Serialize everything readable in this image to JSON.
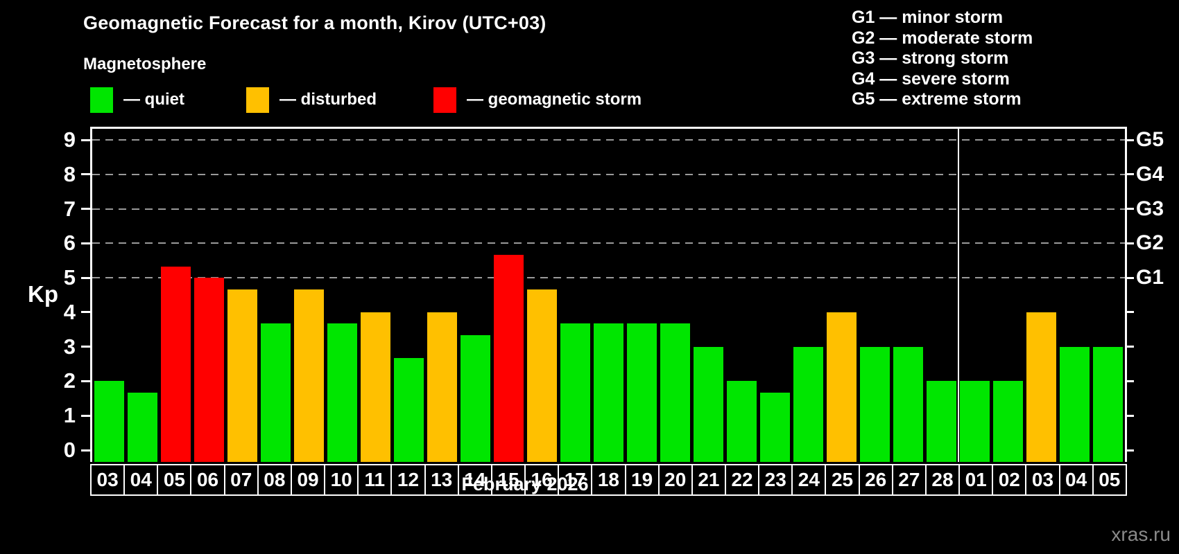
{
  "header": {
    "title": "Geomagnetic Forecast for a month, Kirov (UTC+03)",
    "subtitle": "Magnetosphere"
  },
  "legend": {
    "items": [
      {
        "label": "— quiet",
        "color": "#00E600"
      },
      {
        "label": "— disturbed",
        "color": "#FFC000"
      },
      {
        "label": "— geomagnetic storm",
        "color": "#FF0000"
      }
    ]
  },
  "storm_scale_legend": {
    "lines": [
      "G1 — minor storm",
      "G2 — moderate storm",
      "G3 — strong storm",
      "G4 — severe storm",
      "G5 — extreme storm"
    ]
  },
  "watermark": "xras.ru",
  "chart_data": {
    "type": "bar",
    "title": "Geomagnetic Forecast for a month, Kirov (UTC+03)",
    "ylabel": "Kp",
    "xlabel": "February 2026",
    "ylim": [
      0,
      9
    ],
    "yticks": [
      0,
      1,
      2,
      3,
      4,
      5,
      6,
      7,
      8,
      9
    ],
    "gridlines_at": [
      5,
      6,
      7,
      8,
      9
    ],
    "grid": "dashed-horizontal",
    "legend_position": "top-left",
    "right_axis": [
      {
        "kp": 5,
        "label": "G1"
      },
      {
        "kp": 6,
        "label": "G2"
      },
      {
        "kp": 7,
        "label": "G3"
      },
      {
        "kp": 8,
        "label": "G4"
      },
      {
        "kp": 9,
        "label": "G5"
      }
    ],
    "categories": [
      "03",
      "04",
      "05",
      "06",
      "07",
      "08",
      "09",
      "10",
      "11",
      "12",
      "13",
      "14",
      "15",
      "16",
      "17",
      "18",
      "19",
      "20",
      "21",
      "22",
      "23",
      "24",
      "25",
      "26",
      "27",
      "28",
      "01",
      "02",
      "03",
      "04",
      "05"
    ],
    "values": [
      2.0,
      1.67,
      5.33,
      5.0,
      4.67,
      3.67,
      4.67,
      3.67,
      4.0,
      2.67,
      4.0,
      3.33,
      5.67,
      4.67,
      3.67,
      3.67,
      3.67,
      3.67,
      3.0,
      2.0,
      1.67,
      3.0,
      4.0,
      3.0,
      3.0,
      2.0,
      2.0,
      2.0,
      4.0,
      3.0,
      3.0
    ],
    "levels": [
      "quiet",
      "quiet",
      "storm",
      "storm",
      "disturbed",
      "quiet",
      "disturbed",
      "quiet",
      "disturbed",
      "quiet",
      "disturbed",
      "quiet",
      "storm",
      "disturbed",
      "quiet",
      "quiet",
      "quiet",
      "quiet",
      "quiet",
      "quiet",
      "quiet",
      "quiet",
      "disturbed",
      "quiet",
      "quiet",
      "quiet",
      "quiet",
      "quiet",
      "disturbed",
      "quiet",
      "quiet"
    ],
    "colors": {
      "quiet": "#00E600",
      "disturbed": "#FFC000",
      "storm": "#FF0000"
    },
    "month_separator_after_index": 25
  }
}
